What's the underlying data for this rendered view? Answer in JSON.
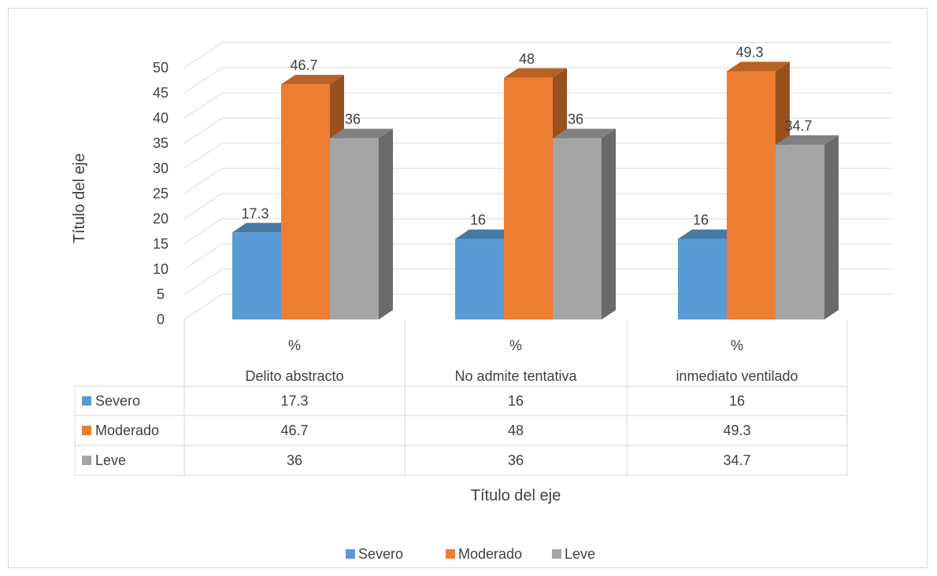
{
  "chart_data": {
    "type": "bar",
    "style": "3d-clustered-column-with-data-table",
    "categories": [
      {
        "line1": "%",
        "line2": "Delito abstracto"
      },
      {
        "line1": "%",
        "line2": "No admite tentativa"
      },
      {
        "line1": "%",
        "line2": "inmediato ventilado"
      }
    ],
    "series": [
      {
        "name": "Severo",
        "color": "#5B9BD5",
        "values": [
          17.3,
          16,
          16
        ]
      },
      {
        "name": "Moderado",
        "color": "#ED7D31",
        "values": [
          46.7,
          48,
          49.3
        ]
      },
      {
        "name": "Leve",
        "color": "#A5A5A5",
        "values": [
          36,
          36,
          34.7
        ]
      }
    ],
    "ylabel": "Título del eje",
    "xlabel": "Título del eje",
    "ylim": [
      0,
      50
    ],
    "y_ticks": [
      0,
      5,
      10,
      15,
      20,
      25,
      30,
      35,
      40,
      45,
      50
    ],
    "grid": true,
    "data_labels": true,
    "data_table": true,
    "legend": "bottom"
  }
}
